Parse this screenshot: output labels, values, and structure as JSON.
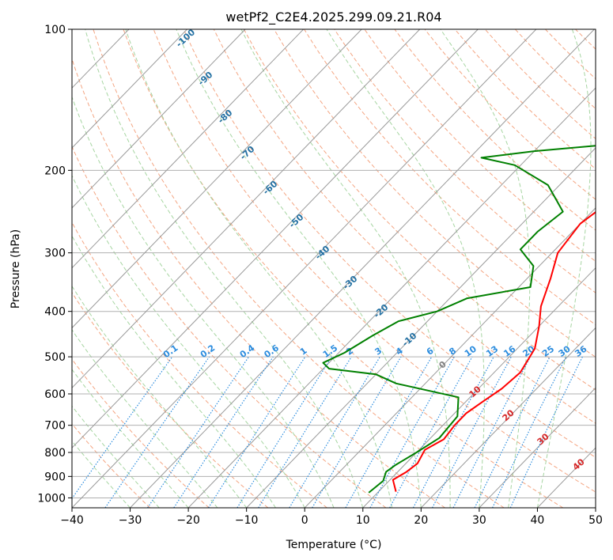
{
  "chart_data": {
    "type": "line",
    "title": "wetPf2_C2E4.2025.299.09.21.R04",
    "xlabel": "Temperature (°C)",
    "ylabel": "Pressure (hPa)",
    "xlim": [
      -40,
      50
    ],
    "ylim": [
      1050,
      100
    ],
    "y_scale": "log",
    "grid": true,
    "x_ticks": [
      "−40",
      "−30",
      "−20",
      "−10",
      "0",
      "10",
      "20",
      "30",
      "40",
      "50"
    ],
    "y_ticks": [
      "100",
      "200",
      "300",
      "400",
      "500",
      "600",
      "700",
      "800",
      "900",
      "1000"
    ],
    "series": [
      {
        "color": "#ff0000",
        "points": [
          [
            13,
            970
          ],
          [
            10.5,
            915
          ],
          [
            11.5,
            880
          ],
          [
            12,
            845
          ],
          [
            11,
            790
          ],
          [
            12.5,
            750
          ],
          [
            12,
            700
          ],
          [
            12,
            660
          ],
          [
            13,
            620
          ],
          [
            14,
            585
          ],
          [
            14.5,
            540
          ],
          [
            13,
            480
          ],
          [
            10,
            430
          ],
          [
            7,
            390
          ],
          [
            4,
            340
          ],
          [
            1,
            300
          ],
          [
            0,
            260
          ],
          [
            1,
            240
          ],
          [
            4,
            210
          ],
          [
            6,
            180
          ],
          [
            6,
            160
          ],
          [
            7,
            145
          ],
          [
            9,
            130
          ],
          [
            10,
            118
          ],
          [
            11,
            110
          ],
          [
            15,
            104
          ],
          [
            18,
            100
          ]
        ]
      },
      {
        "color": "#008000",
        "points": [
          [
            8.5,
            975
          ],
          [
            9,
            920
          ],
          [
            8,
            880
          ],
          [
            8.5,
            850
          ],
          [
            10,
            800
          ],
          [
            11.5,
            745
          ],
          [
            11,
            670
          ],
          [
            8,
            610
          ],
          [
            -5,
            570
          ],
          [
            -10,
            545
          ],
          [
            -19,
            530
          ],
          [
            -21,
            515
          ],
          [
            -19,
            490
          ],
          [
            -17,
            450
          ],
          [
            -15,
            420
          ],
          [
            -10,
            400
          ],
          [
            -7,
            375
          ],
          [
            2,
            355
          ],
          [
            -1,
            320
          ],
          [
            -6,
            295
          ],
          [
            -6,
            270
          ],
          [
            -5,
            245
          ],
          [
            -12,
            215
          ],
          [
            -21,
            195
          ],
          [
            -28,
            188
          ],
          [
            -20,
            182
          ],
          [
            -8,
            176
          ],
          [
            -6,
            160
          ],
          [
            -6,
            140
          ],
          [
            -5,
            125
          ],
          [
            -2,
            115
          ],
          [
            0,
            105
          ],
          [
            0,
            100
          ]
        ]
      }
    ],
    "dry_adiabat_labels": [
      "-100",
      "-90",
      "-80",
      "-70",
      "-60",
      "-50",
      "-40",
      "-30",
      "-20",
      "-10"
    ],
    "mixing_ratio_labels": [
      "0.1",
      "0.2",
      "0.4",
      "0.6",
      "1",
      "1.5",
      "2",
      "3",
      "4",
      "6",
      "8",
      "10",
      "13",
      "16",
      "20",
      "25",
      "30",
      "36"
    ],
    "moist_adiabat_labels": [
      "0",
      "10",
      "20",
      "30",
      "40"
    ],
    "colors": {
      "isobar": "#b0b0b0",
      "skewed_isotherm": "#9a9a9a",
      "dry_adiabat": "#f4a582",
      "moist_adiabat": "#a6d5a1",
      "mixing_ratio": "#2b8cde",
      "dry_adiabat_label": "#2471a3",
      "mixing_ratio_label": "#2b8cde",
      "moist_adiabat_label": "#d62728",
      "zero_label": "#808080"
    }
  }
}
